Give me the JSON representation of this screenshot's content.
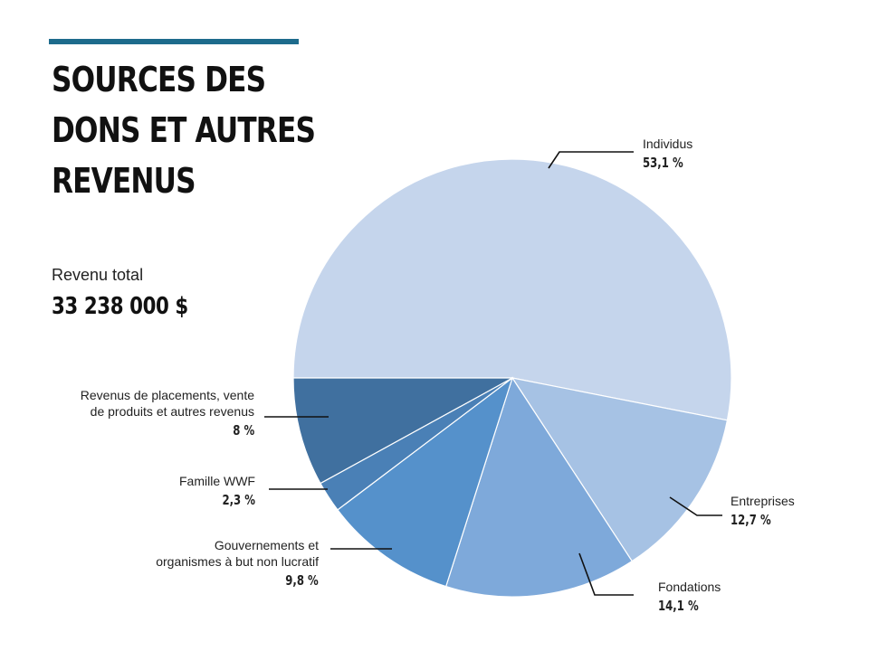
{
  "title": {
    "lines": [
      "SOURCES DES",
      "DONS ET AUTRES",
      "REVENUS"
    ]
  },
  "total": {
    "label": "Revenu total",
    "value": "33 238 000 $"
  },
  "colors": {
    "accent": "#1d6b8c",
    "individus": "#c5d5ec",
    "entreprises": "#a6c2e4",
    "fondations": "#7ea9da",
    "gouvernements": "#5591cb",
    "famille_wwf": "#4a80b6",
    "revenus_placements": "#40709f"
  },
  "chart_data": {
    "type": "pie",
    "slices": [
      {
        "label": "Individus",
        "value": 53.1,
        "display": "53,1 %",
        "color": "#c5d5ec"
      },
      {
        "label": "Entreprises",
        "value": 12.7,
        "display": "12,7 %",
        "color": "#a6c2e4"
      },
      {
        "label": "Fondations",
        "value": 14.1,
        "display": "14,1 %",
        "color": "#7ea9da"
      },
      {
        "label": "Gouvernements et organismes à but non lucratif",
        "lines": [
          "Gouvernements et",
          "organismes à but non lucratif"
        ],
        "value": 9.8,
        "display": "9,8 %",
        "color": "#5591cb"
      },
      {
        "label": "Famille WWF",
        "value": 2.3,
        "display": "2,3 %",
        "color": "#4a80b6"
      },
      {
        "label": "Revenus de placements, vente de produits et autres revenus",
        "lines": [
          "Revenus de placements, vente",
          "de produits et autres revenus"
        ],
        "value": 8,
        "display": "8 %",
        "color": "#40709f"
      }
    ]
  }
}
